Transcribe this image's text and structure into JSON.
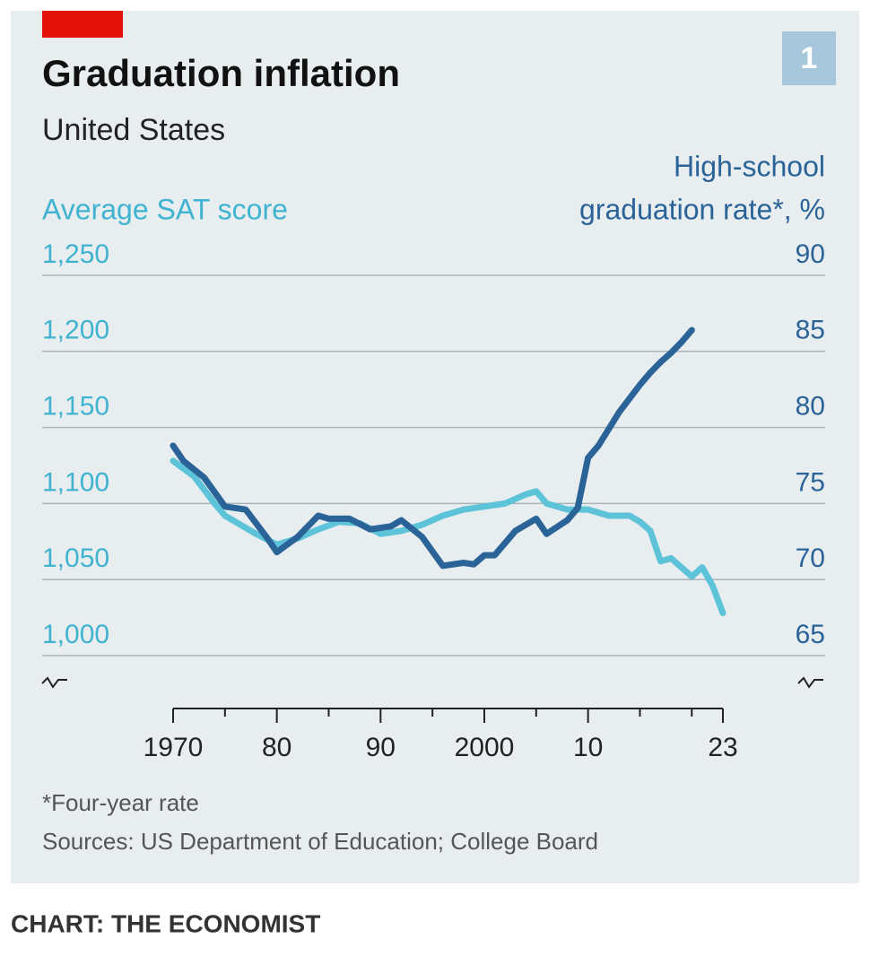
{
  "chart_data": {
    "type": "line",
    "badge": "1",
    "title": "Graduation inflation",
    "subtitle": "United States",
    "y_label": "Average SAT score",
    "y2_label": [
      "High-school",
      "graduation rate*, %"
    ],
    "footnote": "*Four-year rate",
    "source": "Sources: US Department of Education; College Board",
    "credit": "CHART: THE ECONOMIST",
    "xlim": [
      1970,
      2023
    ],
    "xticks": [
      {
        "value": 1970,
        "label": "1970"
      },
      {
        "value": 1980,
        "label": "80"
      },
      {
        "value": 1990,
        "label": "90"
      },
      {
        "value": 2000,
        "label": "2000"
      },
      {
        "value": 2010,
        "label": "10"
      },
      {
        "value": 2023,
        "label": "23"
      }
    ],
    "xminor_ticks": [
      1975,
      1985,
      1995,
      2005,
      2015,
      2020
    ],
    "ylim": [
      1000,
      1250
    ],
    "yticks": [
      {
        "value": 1000,
        "label": "1,000"
      },
      {
        "value": 1050,
        "label": "1,050"
      },
      {
        "value": 1100,
        "label": "1,100"
      },
      {
        "value": 1150,
        "label": "1,150"
      },
      {
        "value": 1200,
        "label": "1,200"
      },
      {
        "value": 1250,
        "label": "1,250"
      }
    ],
    "y2lim": [
      65,
      90
    ],
    "y2ticks": [
      65,
      70,
      75,
      80,
      85,
      90
    ],
    "grid": true,
    "series": [
      {
        "name": "Average SAT score",
        "color": "#5cc3d8",
        "axis": "y",
        "x": [
          1970,
          1972,
          1974,
          1975,
          1976,
          1978,
          1980,
          1982,
          1984,
          1986,
          1988,
          1990,
          1992,
          1994,
          1996,
          1998,
          2000,
          2002,
          2004,
          2005,
          2006,
          2008,
          2010,
          2012,
          2014,
          2015,
          2016,
          2017,
          2018,
          2019,
          2020,
          2021,
          2022,
          2023
        ],
        "values": [
          1128,
          1118,
          1100,
          1092,
          1088,
          1080,
          1073,
          1077,
          1083,
          1088,
          1087,
          1080,
          1082,
          1086,
          1092,
          1096,
          1098,
          1100,
          1106,
          1108,
          1100,
          1096,
          1096,
          1092,
          1092,
          1088,
          1082,
          1062,
          1064,
          1058,
          1052,
          1058,
          1046,
          1028
        ]
      },
      {
        "name": "High-school graduation rate",
        "color": "#2a6397",
        "axis": "y2",
        "x": [
          1970,
          1971,
          1973,
          1975,
          1977,
          1979,
          1980,
          1982,
          1984,
          1985,
          1987,
          1989,
          1991,
          1992,
          1994,
          1996,
          1998,
          1999,
          2000,
          2001,
          2003,
          2005,
          2006,
          2008,
          2009,
          2010,
          2011,
          2012,
          2013,
          2015,
          2016,
          2017,
          2018,
          2019,
          2020
        ],
        "values": [
          78.8,
          77.8,
          76.7,
          74.8,
          74.6,
          72.8,
          71.8,
          72.8,
          74.2,
          74.0,
          74.0,
          73.3,
          73.5,
          73.9,
          72.8,
          70.9,
          71.1,
          71.0,
          71.6,
          71.6,
          73.2,
          74.0,
          73.0,
          73.9,
          74.7,
          78.0,
          78.8,
          79.9,
          81.0,
          82.8,
          83.6,
          84.3,
          84.9,
          85.6,
          86.4
        ]
      }
    ]
  }
}
